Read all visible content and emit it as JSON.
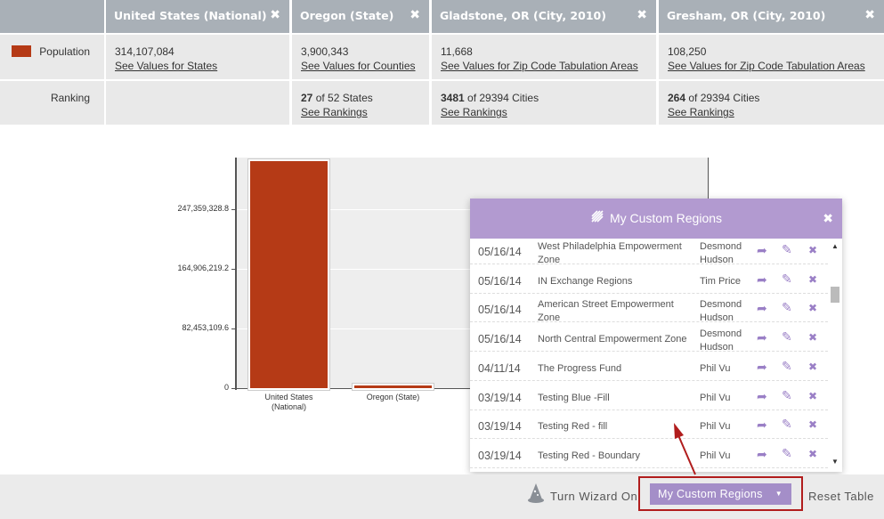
{
  "table": {
    "columns": [
      {
        "title": "United States (National)",
        "close": "✖"
      },
      {
        "title": "Oregon (State)",
        "close": "✖"
      },
      {
        "title": "Gladstone, OR (City, 2010)",
        "close": "✖"
      },
      {
        "title": "Gresham, OR (City, 2010)",
        "close": "✖"
      }
    ],
    "population": {
      "label": "Population",
      "swatch_color": "#b53a16",
      "cells": [
        {
          "value": "314,107,084",
          "link": "See Values for States"
        },
        {
          "value": "3,900,343",
          "link": "See Values for Counties"
        },
        {
          "value": "11,668",
          "link": "See Values for Zip Code Tabulation Areas"
        },
        {
          "value": "108,250",
          "link": "See Values for Zip Code Tabulation Areas"
        }
      ]
    },
    "ranking": {
      "label": "Ranking",
      "cells": [
        {
          "rank": "",
          "of": "",
          "link": ""
        },
        {
          "rank": "27",
          "of": " of 52 States",
          "link": "See Rankings"
        },
        {
          "rank": "3481",
          "of": " of 29394 Cities",
          "link": "See Rankings"
        },
        {
          "rank": "264",
          "of": " of 29394 Cities",
          "link": "See Rankings"
        }
      ]
    }
  },
  "chart_data": {
    "type": "bar",
    "categories": [
      "United States (National)",
      "Oregon (State)"
    ],
    "category_lines": [
      [
        "United States",
        "(National)"
      ],
      [
        "Oregon (State)"
      ]
    ],
    "values": [
      314107084,
      3900343
    ],
    "yticks": [
      "0",
      "82,453,109.6",
      "164,906,219.2",
      "247,359,328.8"
    ],
    "ytick_values": [
      0,
      82453109.6,
      164906219.2,
      247359328.8
    ],
    "ylim": [
      0,
      319000000
    ],
    "bar_color": "#b53a16",
    "grid": true
  },
  "panel": {
    "title": "My Custom Regions",
    "close": "✖",
    "rows": [
      {
        "date": "05/16/14",
        "name": "West Philadelphia Empowerment Zone",
        "owner": "Desmond Hudson"
      },
      {
        "date": "05/16/14",
        "name": "IN Exchange Regions",
        "owner": "Tim Price"
      },
      {
        "date": "05/16/14",
        "name": "American Street Empowerment Zone",
        "owner": "Desmond Hudson"
      },
      {
        "date": "05/16/14",
        "name": "North Central Empowerment Zone",
        "owner": "Desmond Hudson"
      },
      {
        "date": "04/11/14",
        "name": "The Progress Fund",
        "owner": "Phil Vu"
      },
      {
        "date": "03/19/14",
        "name": "Testing Blue -Fill",
        "owner": "Phil Vu"
      },
      {
        "date": "03/19/14",
        "name": "Testing Red - fill",
        "owner": "Phil Vu"
      },
      {
        "date": "03/19/14",
        "name": "Testing Red - Boundary",
        "owner": "Phil Vu"
      }
    ],
    "icons": {
      "share": "➦",
      "edit": "✎",
      "delete": "✖"
    }
  },
  "footer": {
    "wizard_label": "Turn Wizard On",
    "regions_label": "My Custom Regions",
    "regions_caret": "▼",
    "reset_label": "Reset Table"
  },
  "colors": {
    "header_bg": "#a9b0b7",
    "panel_accent": "#b29ad0",
    "highlight_outline": "#b11d1d"
  }
}
